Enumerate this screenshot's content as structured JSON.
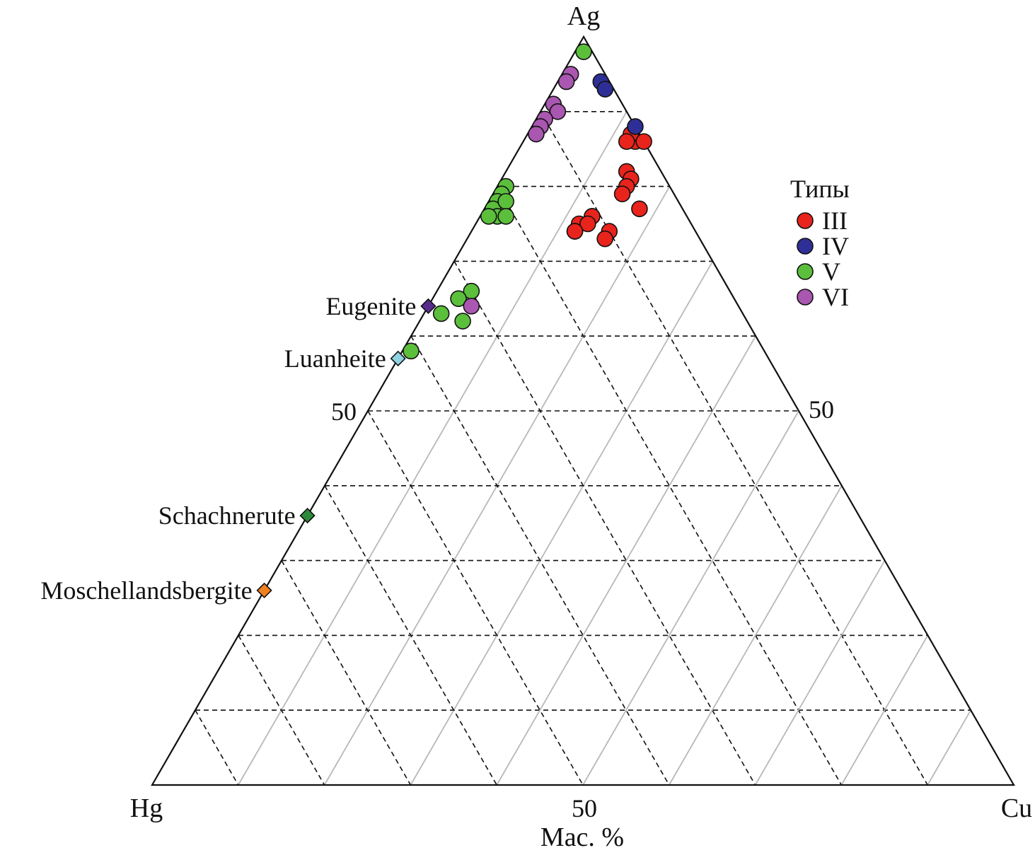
{
  "chart_data": {
    "type": "scatter",
    "subtype": "ternary",
    "vertices": {
      "top": "Ag",
      "left": "Hg",
      "right": "Cu"
    },
    "axis_title": "Мас. %",
    "tick_labels": {
      "left_edge": "50",
      "right_edge": "50",
      "bottom_edge": "50"
    },
    "grid_step": 10,
    "legend": {
      "title": "Типы",
      "placement": "right",
      "entries": [
        {
          "name": "III",
          "color": "#e8241c"
        },
        {
          "name": "IV",
          "color": "#2e2f96"
        },
        {
          "name": "V",
          "color": "#5cbf3c"
        },
        {
          "name": "VI",
          "color": "#a957b0"
        }
      ]
    },
    "series": [
      {
        "name": "III",
        "color": "#e8241c",
        "points": [
          {
            "Ag": 86,
            "Hg": 1,
            "Cu": 13
          },
          {
            "Ag": 87,
            "Hg": 1,
            "Cu": 12
          },
          {
            "Ag": 86,
            "Hg": 0,
            "Cu": 14
          },
          {
            "Ag": 86,
            "Hg": 2,
            "Cu": 12
          },
          {
            "Ag": 82,
            "Hg": 4,
            "Cu": 14
          },
          {
            "Ag": 81,
            "Hg": 4,
            "Cu": 15
          },
          {
            "Ag": 80,
            "Hg": 5,
            "Cu": 15
          },
          {
            "Ag": 79,
            "Hg": 6,
            "Cu": 15
          },
          {
            "Ag": 77,
            "Hg": 5,
            "Cu": 18
          },
          {
            "Ag": 76,
            "Hg": 11,
            "Cu": 13
          },
          {
            "Ag": 75,
            "Hg": 13,
            "Cu": 12
          },
          {
            "Ag": 74,
            "Hg": 14,
            "Cu": 12
          },
          {
            "Ag": 76,
            "Hg": 11,
            "Cu": 13
          },
          {
            "Ag": 75,
            "Hg": 12,
            "Cu": 13
          },
          {
            "Ag": 74,
            "Hg": 10,
            "Cu": 16
          },
          {
            "Ag": 73,
            "Hg": 11,
            "Cu": 16
          },
          {
            "Ag": 74,
            "Hg": 14,
            "Cu": 12
          }
        ]
      },
      {
        "name": "IV",
        "color": "#2e2f96",
        "points": [
          {
            "Ag": 94,
            "Hg": 1,
            "Cu": 5
          },
          {
            "Ag": 93,
            "Hg": 1,
            "Cu": 6
          },
          {
            "Ag": 88,
            "Hg": 0,
            "Cu": 12
          }
        ]
      },
      {
        "name": "V",
        "color": "#5cbf3c",
        "points": [
          {
            "Ag": 98,
            "Hg": 1,
            "Cu": 1
          },
          {
            "Ag": 80,
            "Hg": 19,
            "Cu": 1
          },
          {
            "Ag": 79,
            "Hg": 20,
            "Cu": 1
          },
          {
            "Ag": 78,
            "Hg": 21,
            "Cu": 1
          },
          {
            "Ag": 77,
            "Hg": 22,
            "Cu": 1
          },
          {
            "Ag": 76,
            "Hg": 22,
            "Cu": 2
          },
          {
            "Ag": 78,
            "Hg": 20,
            "Cu": 2
          },
          {
            "Ag": 76,
            "Hg": 23,
            "Cu": 1
          },
          {
            "Ag": 76,
            "Hg": 21,
            "Cu": 3
          },
          {
            "Ag": 66,
            "Hg": 30,
            "Cu": 4
          },
          {
            "Ag": 65,
            "Hg": 32,
            "Cu": 3
          },
          {
            "Ag": 62,
            "Hg": 33,
            "Cu": 5
          },
          {
            "Ag": 63,
            "Hg": 35,
            "Cu": 2
          },
          {
            "Ag": 58,
            "Hg": 41,
            "Cu": 1
          }
        ]
      },
      {
        "name": "VI",
        "color": "#a957b0",
        "points": [
          {
            "Ag": 95,
            "Hg": 4,
            "Cu": 1
          },
          {
            "Ag": 94,
            "Hg": 5,
            "Cu": 1
          },
          {
            "Ag": 91,
            "Hg": 8,
            "Cu": 1
          },
          {
            "Ag": 90,
            "Hg": 8,
            "Cu": 2
          },
          {
            "Ag": 89,
            "Hg": 10,
            "Cu": 1
          },
          {
            "Ag": 88,
            "Hg": 11,
            "Cu": 1
          },
          {
            "Ag": 87,
            "Hg": 12,
            "Cu": 1
          },
          {
            "Ag": 64,
            "Hg": 31,
            "Cu": 5
          }
        ]
      }
    ],
    "reference_minerals": [
      {
        "name": "Eugenite",
        "Ag": 64,
        "Hg": 36,
        "Cu": 0,
        "color": "#5a2d8c"
      },
      {
        "name": "Luanheite",
        "Ag": 57,
        "Hg": 43,
        "Cu": 0,
        "color": "#8fd3e0"
      },
      {
        "name": "Schachnerute",
        "Ag": 36,
        "Hg": 64,
        "Cu": 0,
        "color": "#2d8a3a"
      },
      {
        "name": "Moschellandsbergite",
        "Ag": 26,
        "Hg": 74,
        "Cu": 0,
        "color": "#f08020"
      }
    ]
  }
}
